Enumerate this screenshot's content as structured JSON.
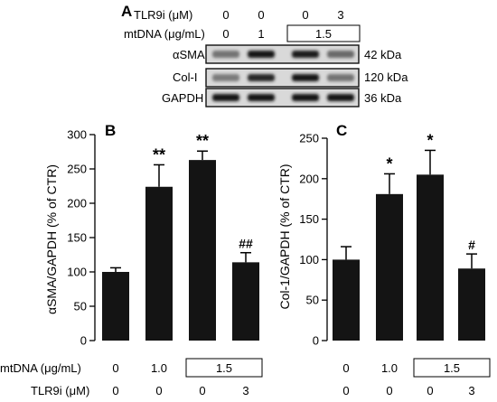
{
  "panel_a": {
    "letter": "A",
    "tlr9i_label": "TLR9i (μM)",
    "tlr9i_values": [
      "0",
      "0",
      "0",
      "3"
    ],
    "mtdna_label": "mtDNA (μg/mL)",
    "mtdna_values": [
      "0",
      "1"
    ],
    "mtdna_boxed_value": "1.5",
    "blots": [
      {
        "protein": "αSMA",
        "size": "42 kDa",
        "intensity": [
          0.45,
          0.95,
          0.9,
          0.5
        ]
      },
      {
        "protein": "Col-I",
        "size": "120 kDa",
        "intensity": [
          0.4,
          0.85,
          0.95,
          0.45
        ]
      },
      {
        "protein": "GAPDH",
        "size": "36 kDa",
        "intensity": [
          0.95,
          0.95,
          0.95,
          0.95
        ]
      }
    ]
  },
  "chart_data": [
    {
      "type": "bar",
      "panel": "B",
      "ylabel": "αSMA/GAPDH (% of CTR)",
      "ylim": [
        0,
        300
      ],
      "yticks": [
        "0",
        "50",
        "100",
        "150",
        "200",
        "250",
        "300"
      ],
      "values": [
        100,
        224,
        263,
        114
      ],
      "errors": [
        6,
        32,
        13,
        14
      ],
      "annotations": [
        "",
        "**",
        "**",
        "##"
      ],
      "mtdna_label": "mtDNA (μg/mL)",
      "mtdna_values": [
        "0",
        "1.0"
      ],
      "mtdna_boxed_value": "1.5",
      "tlr9i_label": "TLR9i (μM)",
      "tlr9i_values": [
        "0",
        "0",
        "0",
        "3"
      ]
    },
    {
      "type": "bar",
      "panel": "C",
      "ylabel": "Col-1/GAPDH (% of CTR)",
      "ylim": [
        0,
        250
      ],
      "yticks": [
        "0",
        "50",
        "100",
        "150",
        "200",
        "250"
      ],
      "values": [
        100,
        181,
        205,
        89
      ],
      "errors": [
        16,
        25,
        30,
        18
      ],
      "annotations": [
        "",
        "*",
        "*",
        "#"
      ],
      "mtdna_values": [
        "0",
        "1.0"
      ],
      "mtdna_boxed_value": "1.5",
      "tlr9i_values": [
        "0",
        "0",
        "0",
        "3"
      ]
    }
  ]
}
